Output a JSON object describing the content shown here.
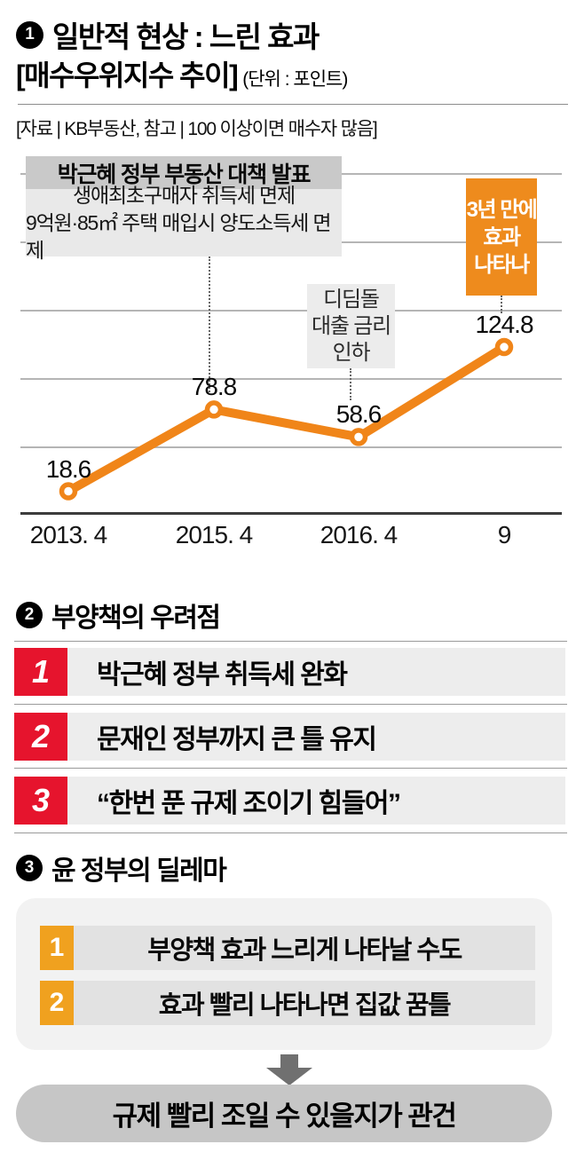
{
  "header": {
    "bullet": "1",
    "title": "일반적 현상 : 느린 효과",
    "subtitle": "[매수우위지수 추이]",
    "unit": "(단위 : 포인트)",
    "source": "[자료 | KB부동산, 참고 | 100 이상이면 매수자 많음]"
  },
  "chart_data": {
    "type": "line",
    "title": "매수우위지수 추이",
    "unit": "포인트",
    "x_labels": [
      "2013. 4",
      "2015. 4",
      "2016. 4",
      "9"
    ],
    "values": [
      18.6,
      78.8,
      58.6,
      124.8
    ],
    "ylim": [
      0,
      140
    ],
    "grid": true,
    "line_color": "#f08519",
    "note": "100 이상이면 매수자 많음",
    "annotations": {
      "policy": {
        "title": "박근혜 정부 부동산 대책 발표",
        "line1": "생애최초구매자 취득세 면제",
        "line2": "9억원·85㎡ 주택 매입시 양도소득세 면제",
        "target_value": 78.8
      },
      "didimdol": {
        "line1": "디딤돌",
        "line2": "대출 금리",
        "line3": "인하",
        "target_value": 58.6
      },
      "effect": {
        "line1": "3년 만에",
        "line2": "효과",
        "line3": "나타나",
        "target_value": 124.8,
        "color": "#ee8b1d"
      }
    }
  },
  "section2": {
    "bullet": "2",
    "title": "부양책의 우려점",
    "accent": "#e6142d",
    "items": [
      {
        "num": "1",
        "text": "박근혜 정부 취득세 완화"
      },
      {
        "num": "2",
        "text": "문재인 정부까지 큰 틀 유지"
      },
      {
        "num": "3",
        "text": "“한번 푼 규제 조이기 힘들어”"
      }
    ]
  },
  "section3": {
    "bullet": "3",
    "title": "윤 정부의 딜레마",
    "accent": "#f0a11f",
    "items": [
      {
        "num": "1",
        "text": "부양책 효과 느리게 나타날 수도"
      },
      {
        "num": "2",
        "text": "효과 빨리 나타나면 집값 꿈틀"
      }
    ],
    "conclusion": "규제 빨리 조일 수 있을지가 관건"
  }
}
